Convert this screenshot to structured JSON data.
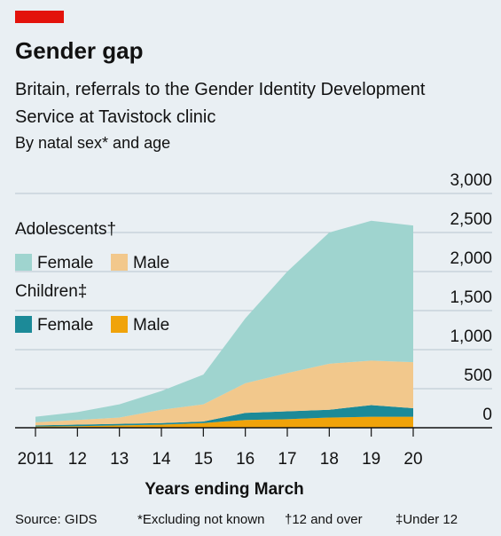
{
  "chart_data": {
    "type": "stacked_area",
    "title": "Gender gap",
    "subtitle": "Britain, referrals to the Gender Identity Development Service at Tavistock clinic",
    "subtitle2": "By natal sex* and age",
    "x_label": "Years ending March",
    "categories": [
      "2011",
      "12",
      "13",
      "14",
      "15",
      "16",
      "17",
      "18",
      "19",
      "20"
    ],
    "groups": [
      {
        "title": "Adolescents†",
        "series": [
          {
            "name": "Female",
            "color": "#9fd4cf",
            "values": [
              70,
              100,
              170,
              240,
              380,
              830,
              1300,
              1680,
              1790,
              1750
            ]
          },
          {
            "name": "Male",
            "color": "#f2c88c",
            "values": [
              40,
              60,
              80,
              170,
              220,
              380,
              490,
              590,
              570,
              590
            ]
          }
        ]
      },
      {
        "title": "Children‡",
        "series": [
          {
            "name": "Female",
            "color": "#1c8a98",
            "values": [
              15,
              20,
              20,
              20,
              20,
              90,
              100,
              100,
              150,
              110
            ]
          },
          {
            "name": "Male",
            "color": "#f0a30a",
            "values": [
              15,
              20,
              30,
              40,
              60,
              100,
              110,
              130,
              140,
              140
            ]
          }
        ]
      }
    ],
    "ylim": [
      0,
      3000
    ],
    "yticks": [
      0,
      {
        "value": 500,
        "label": "500"
      },
      {
        "value": 1000,
        "label": "1,000"
      },
      {
        "value": 1500,
        "label": "1,500"
      },
      {
        "value": 2000,
        "label": "2,000"
      },
      {
        "value": 2500,
        "label": "2,500"
      },
      {
        "value": 3000,
        "label": "3,000"
      }
    ],
    "grid": true,
    "source": "Source: GIDS",
    "footnotes": [
      "*Excluding not known",
      "†12 and over",
      "‡Under 12"
    ]
  }
}
